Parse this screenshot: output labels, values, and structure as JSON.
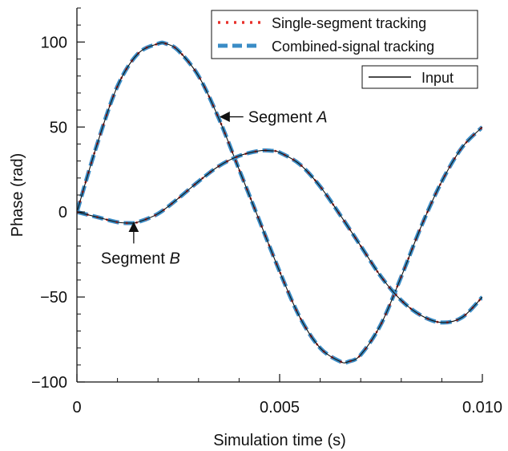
{
  "chart_data": {
    "type": "line",
    "xlabel": "Simulation time (s)",
    "ylabel": "Phase (rad)",
    "xlim": [
      0,
      0.01
    ],
    "ylim": [
      -100,
      120
    ],
    "x_ticks": [
      {
        "value": 0,
        "label": "0"
      },
      {
        "value": 0.005,
        "label": "0.005"
      },
      {
        "value": 0.01,
        "label": "0.010"
      }
    ],
    "y_ticks": [
      {
        "value": 100,
        "label": "100"
      },
      {
        "value": 50,
        "label": "50"
      },
      {
        "value": 0,
        "label": "0"
      },
      {
        "value": -50,
        "label": "−50"
      },
      {
        "value": -100,
        "label": "−100"
      }
    ],
    "x_minor_step": 0.001,
    "y_minor_step": 10,
    "grid": false,
    "legend_entries": [
      {
        "label": "Single-segment tracking",
        "style": "dotted",
        "color": "#e8312b"
      },
      {
        "label": "Combined-signal tracking",
        "style": "dashed",
        "color": "#3a8cc6"
      },
      {
        "label": "Input",
        "style": "solid",
        "color": "#111111"
      }
    ],
    "legend_placement": "top-right",
    "series": [
      {
        "x": [
          0,
          0.0005,
          0.001,
          0.0015,
          0.002,
          0.0022,
          0.0025,
          0.003,
          0.0035,
          0.004,
          0.0045,
          0.005,
          0.0055,
          0.006,
          0.0065,
          0.0067,
          0.007,
          0.0075,
          0.008,
          0.0085,
          0.009,
          0.0095,
          0.01
        ],
        "y": [
          0,
          40,
          74,
          93,
          99,
          99,
          95,
          80,
          55,
          25,
          -5,
          -35,
          -62,
          -80,
          -88,
          -88,
          -84,
          -66,
          -38,
          -8,
          18,
          38,
          50
        ]
      },
      {
        "x": [
          0,
          0.0005,
          0.001,
          0.0013,
          0.0015,
          0.002,
          0.0025,
          0.003,
          0.0035,
          0.004,
          0.0045,
          0.0048,
          0.005,
          0.0055,
          0.006,
          0.0065,
          0.007,
          0.0075,
          0.008,
          0.0085,
          0.009,
          0.0095,
          0.01
        ],
        "y": [
          0,
          -3,
          -6,
          -6.5,
          -6,
          -1,
          8,
          18,
          27,
          33,
          36,
          36,
          35,
          28,
          15,
          -2,
          -20,
          -38,
          -52,
          -61,
          -65,
          -62,
          -50
        ]
      }
    ],
    "annotations": [
      {
        "label_prefix": "Segment ",
        "label_italic": "A",
        "text_x": 0.0045,
        "text_y": 56,
        "arrow_to_x": 0.00354,
        "arrow_to_y": 56
      },
      {
        "label_prefix": "Segment ",
        "label_italic": "B",
        "text_x": 0.0015,
        "text_y": -27,
        "arrow_to_x": 0.0014,
        "arrow_to_y": -6.3
      }
    ]
  }
}
